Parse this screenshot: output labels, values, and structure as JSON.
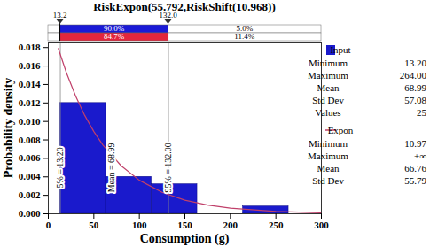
{
  "chart_data": {
    "type": "histogram",
    "title": "RiskExpon(55.792,RiskShift(10.968))",
    "x_label": "Consumption (g)",
    "y_label": "Probability density",
    "xlim": [
      0,
      300
    ],
    "xticks": [
      0,
      50,
      100,
      150,
      200,
      250,
      300
    ],
    "ylim": [
      0,
      0.0185
    ],
    "yticks": [
      {
        "value": 0,
        "label": "0.000"
      },
      {
        "value": 0.002,
        "label": "0.002"
      },
      {
        "value": 0.004,
        "label": "0.004"
      },
      {
        "value": 0.006,
        "label": "0.006"
      },
      {
        "value": 0.008,
        "label": "0.008"
      },
      {
        "value": 0.01,
        "label": "0.010"
      },
      {
        "value": 0.012,
        "label": "0.012"
      },
      {
        "value": 0.014,
        "label": "0.014"
      },
      {
        "value": 0.016,
        "label": "0.016"
      },
      {
        "value": 0.018,
        "label": "0.018"
      }
    ],
    "legend": "right",
    "series": [
      {
        "name": "Input",
        "type": "histogram",
        "color": "#1a1acc",
        "bins": [
          13.2,
          63.36,
          113.52,
          163.68,
          213.84,
          264
        ],
        "values": [
          0.012,
          0.004,
          0.0032,
          0,
          0.0008
        ],
        "stats": [
          [
            "Minimum",
            "13.20"
          ],
          [
            "Maximum",
            "264.00"
          ],
          [
            "Mean",
            "68.99"
          ],
          [
            "Std Dev",
            "57.08"
          ],
          [
            "Values",
            "25"
          ]
        ]
      },
      {
        "name": "Expon",
        "type": "line",
        "color": "#c0406a",
        "x": [
          10.97,
          20,
          30,
          40,
          50,
          60,
          80,
          100,
          125,
          150,
          175,
          200,
          250,
          300
        ],
        "values": [
          0.0179,
          0.01524,
          0.01274,
          0.01065,
          0.0089,
          0.00744,
          0.0052,
          0.00363,
          0.00232,
          0.00148,
          0.00095,
          0.00061,
          0.00025,
          0.0001
        ],
        "stats": [
          [
            "Minimum",
            "10.97"
          ],
          [
            "Maximum",
            "+∞"
          ],
          [
            "Mean",
            "66.76"
          ],
          [
            "Std Dev",
            "55.79"
          ]
        ]
      }
    ],
    "annotations": [
      {
        "x": 13.2,
        "text": "5% = 13.20"
      },
      {
        "x": 68.99,
        "text": "Mean = 68.99"
      },
      {
        "x": 132.0,
        "text": "95% = 132.00"
      }
    ],
    "delimiters": [
      {
        "value": 13.2,
        "label": "13.2"
      },
      {
        "value": 132.0,
        "label": "132.0"
      }
    ],
    "probability_bars": [
      {
        "name": "Input",
        "color": "#1a1ad6",
        "values": [
          90.0,
          5.0
        ],
        "value_labels": [
          "90.0%",
          "5.0%"
        ]
      },
      {
        "name": "Expon",
        "color": "#e3263d",
        "values": [
          84.7,
          11.4
        ],
        "value_labels": [
          "84.7%",
          "11.4%"
        ]
      }
    ]
  }
}
